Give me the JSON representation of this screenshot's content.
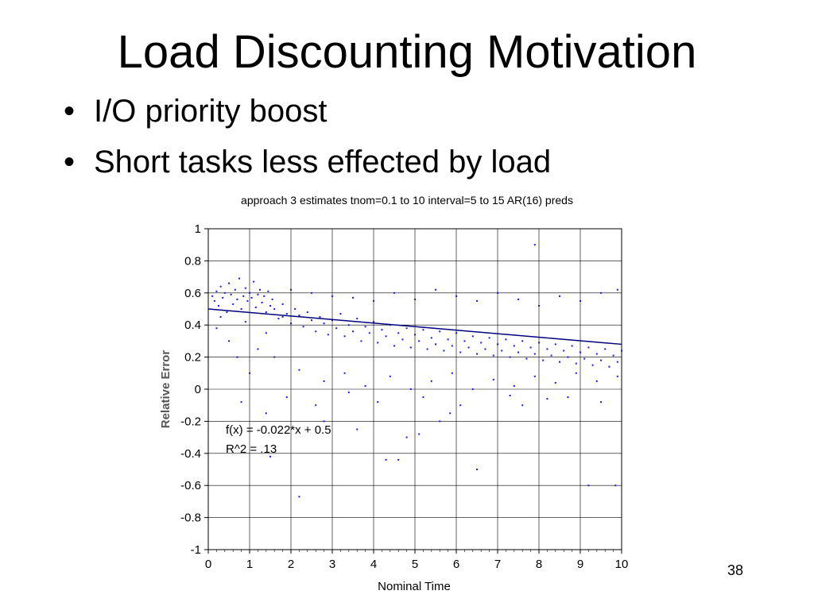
{
  "slide": {
    "title": "Load Discounting Motivation",
    "bullets": [
      "I/O priority boost",
      "Short tasks less effected by load"
    ],
    "bullet_glyph": "•",
    "number": "38"
  },
  "colors": {
    "points": "#1a1aee",
    "fit_line": "#000080",
    "grid": "#000000"
  },
  "chart_data": {
    "type": "scatter",
    "title": "approach 3 estimates tnom=0.1 to 10 interval=5 to 15 AR(16) preds",
    "xlabel": "Nominal Time",
    "ylabel": "Relative Error",
    "xlim": [
      0,
      10
    ],
    "ylim": [
      -1,
      1
    ],
    "xticks": [
      0,
      1,
      2,
      3,
      4,
      5,
      6,
      7,
      8,
      9,
      10
    ],
    "yticks": [
      -1,
      -0.8,
      -0.6,
      -0.4,
      -0.2,
      0,
      0.2,
      0.4,
      0.6,
      0.8,
      1
    ],
    "grid": true,
    "fit": {
      "slope": -0.022,
      "intercept": 0.5
    },
    "annotations": [
      "f(x) = -0.022*x + 0.5",
      "R^2 = .13"
    ],
    "outliers": [
      [
        2.2,
        -0.67
      ],
      [
        9.2,
        -0.6
      ],
      [
        9.85,
        -0.6
      ],
      [
        6.5,
        -0.5
      ],
      [
        5.1,
        -0.28
      ],
      [
        5.85,
        -0.15
      ],
      [
        7.9,
        0.9
      ],
      [
        4.3,
        -0.44
      ],
      [
        4.6,
        -0.44
      ],
      [
        1.5,
        -0.42
      ]
    ],
    "points": [
      [
        0.1,
        0.58
      ],
      [
        0.15,
        0.55
      ],
      [
        0.2,
        0.61
      ],
      [
        0.25,
        0.52
      ],
      [
        0.3,
        0.64
      ],
      [
        0.35,
        0.57
      ],
      [
        0.4,
        0.6
      ],
      [
        0.45,
        0.48
      ],
      [
        0.5,
        0.66
      ],
      [
        0.55,
        0.59
      ],
      [
        0.6,
        0.53
      ],
      [
        0.65,
        0.62
      ],
      [
        0.7,
        0.56
      ],
      [
        0.75,
        0.69
      ],
      [
        0.8,
        0.5
      ],
      [
        0.85,
        0.58
      ],
      [
        0.9,
        0.63
      ],
      [
        0.95,
        0.55
      ],
      [
        1.0,
        0.6
      ],
      [
        1.05,
        0.57
      ],
      [
        1.1,
        0.67
      ],
      [
        1.15,
        0.51
      ],
      [
        1.2,
        0.59
      ],
      [
        1.25,
        0.62
      ],
      [
        1.3,
        0.54
      ],
      [
        1.35,
        0.58
      ],
      [
        1.4,
        0.48
      ],
      [
        1.45,
        0.61
      ],
      [
        1.5,
        0.52
      ],
      [
        1.55,
        0.56
      ],
      [
        0.2,
        0.38
      ],
      [
        0.5,
        0.3
      ],
      [
        0.7,
        0.2
      ],
      [
        0.9,
        0.42
      ],
      [
        1.0,
        0.1
      ],
      [
        1.2,
        0.25
      ],
      [
        1.4,
        0.35
      ],
      [
        1.6,
        0.2
      ],
      [
        1.8,
        0.45
      ],
      [
        0.3,
        0.45
      ],
      [
        1.6,
        0.5
      ],
      [
        1.7,
        0.44
      ],
      [
        1.8,
        0.53
      ],
      [
        1.9,
        0.47
      ],
      [
        2.0,
        0.41
      ],
      [
        2.1,
        0.5
      ],
      [
        2.2,
        0.46
      ],
      [
        2.3,
        0.39
      ],
      [
        2.4,
        0.48
      ],
      [
        2.5,
        0.43
      ],
      [
        2.6,
        0.36
      ],
      [
        2.7,
        0.45
      ],
      [
        2.8,
        0.41
      ],
      [
        2.9,
        0.34
      ],
      [
        3.0,
        0.43
      ],
      [
        3.1,
        0.38
      ],
      [
        3.2,
        0.47
      ],
      [
        3.3,
        0.33
      ],
      [
        3.4,
        0.4
      ],
      [
        3.5,
        0.36
      ],
      [
        3.6,
        0.44
      ],
      [
        3.7,
        0.3
      ],
      [
        3.8,
        0.39
      ],
      [
        3.9,
        0.35
      ],
      [
        4.0,
        0.42
      ],
      [
        4.1,
        0.29
      ],
      [
        4.2,
        0.37
      ],
      [
        4.3,
        0.33
      ],
      [
        4.4,
        0.4
      ],
      [
        4.5,
        0.27
      ],
      [
        4.6,
        0.35
      ],
      [
        4.7,
        0.31
      ],
      [
        4.8,
        0.38
      ],
      [
        4.9,
        0.26
      ],
      [
        5.0,
        0.34
      ],
      [
        5.1,
        0.3
      ],
      [
        5.2,
        0.37
      ],
      [
        5.3,
        0.25
      ],
      [
        5.4,
        0.32
      ],
      [
        5.5,
        0.28
      ],
      [
        5.6,
        0.36
      ],
      [
        5.7,
        0.24
      ],
      [
        5.8,
        0.31
      ],
      [
        5.9,
        0.27
      ],
      [
        6.0,
        0.35
      ],
      [
        6.1,
        0.23
      ],
      [
        6.2,
        0.3
      ],
      [
        6.3,
        0.26
      ],
      [
        6.4,
        0.33
      ],
      [
        6.5,
        0.22
      ],
      [
        6.6,
        0.29
      ],
      [
        6.7,
        0.25
      ],
      [
        6.8,
        0.32
      ],
      [
        6.9,
        0.21
      ],
      [
        7.0,
        0.28
      ],
      [
        7.1,
        0.24
      ],
      [
        7.2,
        0.31
      ],
      [
        7.3,
        0.2
      ],
      [
        7.4,
        0.27
      ],
      [
        7.5,
        0.23
      ],
      [
        7.6,
        0.3
      ],
      [
        7.7,
        0.19
      ],
      [
        7.8,
        0.26
      ],
      [
        7.9,
        0.22
      ],
      [
        8.0,
        0.29
      ],
      [
        8.1,
        0.18
      ],
      [
        8.2,
        0.25
      ],
      [
        8.3,
        0.21
      ],
      [
        8.4,
        0.28
      ],
      [
        8.5,
        0.17
      ],
      [
        8.6,
        0.24
      ],
      [
        8.7,
        0.2
      ],
      [
        8.8,
        0.27
      ],
      [
        8.9,
        0.16
      ],
      [
        9.0,
        0.23
      ],
      [
        9.1,
        0.19
      ],
      [
        9.2,
        0.26
      ],
      [
        9.3,
        0.15
      ],
      [
        9.4,
        0.22
      ],
      [
        9.5,
        0.18
      ],
      [
        9.6,
        0.25
      ],
      [
        9.7,
        0.14
      ],
      [
        9.8,
        0.21
      ],
      [
        9.9,
        0.17
      ],
      [
        10.0,
        0.24
      ],
      [
        2.0,
        0.62
      ],
      [
        2.5,
        0.6
      ],
      [
        3.0,
        0.58
      ],
      [
        3.5,
        0.57
      ],
      [
        4.0,
        0.55
      ],
      [
        4.5,
        0.6
      ],
      [
        5.0,
        0.56
      ],
      [
        5.5,
        0.62
      ],
      [
        6.0,
        0.58
      ],
      [
        6.5,
        0.55
      ],
      [
        7.0,
        0.6
      ],
      [
        7.5,
        0.56
      ],
      [
        8.0,
        0.52
      ],
      [
        8.5,
        0.58
      ],
      [
        9.0,
        0.55
      ],
      [
        9.5,
        0.6
      ],
      [
        9.9,
        0.62
      ],
      [
        2.2,
        0.12
      ],
      [
        2.8,
        0.05
      ],
      [
        3.3,
        0.1
      ],
      [
        3.8,
        0.02
      ],
      [
        4.4,
        0.08
      ],
      [
        4.9,
        0.0
      ],
      [
        5.4,
        0.05
      ],
      [
        5.9,
        0.1
      ],
      [
        6.4,
        0.0
      ],
      [
        6.9,
        0.06
      ],
      [
        7.4,
        0.02
      ],
      [
        7.9,
        0.08
      ],
      [
        8.4,
        0.04
      ],
      [
        8.9,
        0.1
      ],
      [
        9.4,
        0.05
      ],
      [
        9.9,
        0.08
      ],
      [
        1.9,
        -0.05
      ],
      [
        2.6,
        -0.1
      ],
      [
        3.4,
        -0.02
      ],
      [
        4.1,
        -0.08
      ],
      [
        5.2,
        -0.05
      ],
      [
        6.1,
        -0.1
      ],
      [
        7.3,
        -0.04
      ],
      [
        8.2,
        -0.06
      ],
      [
        9.5,
        -0.08
      ],
      [
        2.8,
        -0.2
      ],
      [
        3.6,
        -0.25
      ],
      [
        4.8,
        -0.3
      ],
      [
        5.6,
        -0.2
      ],
      [
        7.6,
        -0.1
      ],
      [
        8.7,
        -0.05
      ],
      [
        1.4,
        -0.15
      ],
      [
        0.8,
        -0.08
      ]
    ]
  }
}
